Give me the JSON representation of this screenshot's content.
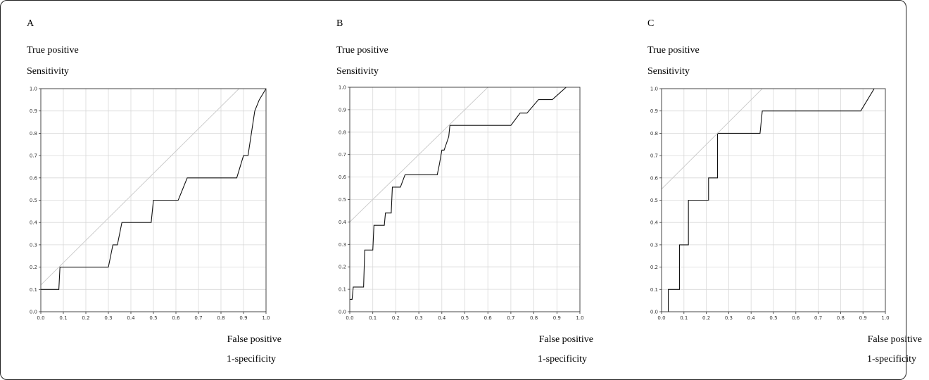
{
  "chart_data": [
    {
      "type": "line",
      "panel": "A",
      "title": "",
      "ylabel_lines": [
        "True positive",
        "Sensitivity"
      ],
      "xlabel_lines": [
        "False positive",
        "1-specificity"
      ],
      "xlim": [
        0,
        1
      ],
      "ylim": [
        0,
        1
      ],
      "xticks": [
        "0.0",
        "0.1",
        "0.2",
        "0.3",
        "0.4",
        "0.5",
        "0.6",
        "0.7",
        "0.8",
        "0.9",
        "1.0"
      ],
      "yticks": [
        "0.0",
        "0.1",
        "0.2",
        "0.3",
        "0.4",
        "0.5",
        "0.6",
        "0.7",
        "0.8",
        "0.9",
        "1.0"
      ],
      "grid": true,
      "series": [
        {
          "role": "roc",
          "x": [
            0,
            0.08,
            0.085,
            0.3,
            0.32,
            0.34,
            0.35,
            0.36,
            0.49,
            0.5,
            0.51,
            0.61,
            0.65,
            0.87,
            0.9,
            0.92,
            0.95,
            0.97,
            1.0
          ],
          "y": [
            0.1,
            0.1,
            0.2,
            0.2,
            0.3,
            0.3,
            0.35,
            0.4,
            0.4,
            0.5,
            0.5,
            0.5,
            0.6,
            0.6,
            0.7,
            0.7,
            0.9,
            0.95,
            1.0
          ]
        },
        {
          "role": "reference",
          "x": [
            0,
            0.88
          ],
          "y": [
            0.12,
            1.0
          ]
        }
      ]
    },
    {
      "type": "line",
      "panel": "B",
      "title": "",
      "ylabel_lines": [
        "True positive",
        "Sensitivity"
      ],
      "xlabel_lines": [
        "False positive",
        "1-specificity"
      ],
      "xlim": [
        0,
        1
      ],
      "ylim": [
        0,
        1
      ],
      "xticks": [
        "0.0",
        "0.1",
        "0.2",
        "0.3",
        "0.4",
        "0.5",
        "0.6",
        "0.7",
        "0.8",
        "0.9",
        "1.0"
      ],
      "yticks": [
        "0.0",
        "0.1",
        "0.2",
        "0.3",
        "0.4",
        "0.5",
        "0.6",
        "0.7",
        "0.8",
        "0.9",
        "1.0"
      ],
      "grid": true,
      "series": [
        {
          "role": "roc",
          "x": [
            0,
            0.01,
            0.015,
            0.06,
            0.065,
            0.1,
            0.105,
            0.15,
            0.155,
            0.18,
            0.185,
            0.22,
            0.24,
            0.38,
            0.39,
            0.4,
            0.41,
            0.42,
            0.43,
            0.435,
            0.7,
            0.74,
            0.77,
            0.82,
            0.88,
            0.94
          ],
          "y": [
            0.055,
            0.055,
            0.11,
            0.11,
            0.275,
            0.275,
            0.385,
            0.385,
            0.44,
            0.44,
            0.555,
            0.555,
            0.61,
            0.61,
            0.66,
            0.72,
            0.72,
            0.75,
            0.78,
            0.83,
            0.83,
            0.885,
            0.885,
            0.945,
            0.945,
            1.0
          ]
        },
        {
          "role": "reference",
          "x": [
            0,
            0.6
          ],
          "y": [
            0.4,
            1.0
          ]
        }
      ]
    },
    {
      "type": "line",
      "panel": "C",
      "title": "",
      "ylabel_lines": [
        "True positive",
        "Sensitivity"
      ],
      "xlabel_lines": [
        "False positive",
        "1-specificity"
      ],
      "xlim": [
        0,
        1
      ],
      "ylim": [
        0,
        1
      ],
      "xticks": [
        "0.0",
        "0.1",
        "0.2",
        "0.3",
        "0.4",
        "0.5",
        "0.6",
        "0.7",
        "0.8",
        "0.9",
        "1.0"
      ],
      "yticks": [
        "0.0",
        "0.1",
        "0.2",
        "0.3",
        "0.4",
        "0.5",
        "0.6",
        "0.7",
        "0.8",
        "0.9",
        "1.0"
      ],
      "grid": true,
      "series": [
        {
          "role": "roc",
          "x": [
            0.03,
            0.03,
            0.08,
            0.08,
            0.12,
            0.12,
            0.21,
            0.21,
            0.25,
            0.25,
            0.44,
            0.45,
            0.89,
            0.95
          ],
          "y": [
            0,
            0.1,
            0.1,
            0.3,
            0.3,
            0.5,
            0.5,
            0.6,
            0.6,
            0.8,
            0.8,
            0.9,
            0.9,
            1.0
          ]
        },
        {
          "role": "reference",
          "x": [
            0,
            0.45
          ],
          "y": [
            0.55,
            1.0
          ]
        }
      ]
    }
  ],
  "colors": {
    "roc": "#111111",
    "reference": "#c8c8c8",
    "grid": "#d8d8d8",
    "axis": "#333333"
  }
}
